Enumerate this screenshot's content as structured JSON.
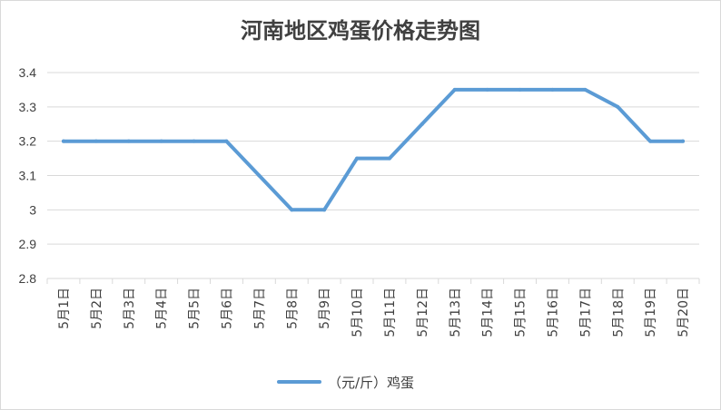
{
  "chart_data": {
    "type": "line",
    "title": "河南地区鸡蛋价格走势图",
    "categories": [
      "5月1日",
      "5月2日",
      "5月3日",
      "5月4日",
      "5月5日",
      "5月6日",
      "5月7日",
      "5月8日",
      "5月9日",
      "5月10日",
      "5月11日",
      "5月12日",
      "5月13日",
      "5月14日",
      "5月15日",
      "5月16日",
      "5月17日",
      "5月18日",
      "5月19日",
      "5月20日"
    ],
    "series": [
      {
        "name": "（元/斤）鸡蛋",
        "values": [
          3.2,
          3.2,
          3.2,
          3.2,
          3.2,
          3.2,
          3.1,
          3.0,
          3.0,
          3.15,
          3.15,
          3.25,
          3.35,
          3.35,
          3.35,
          3.35,
          3.35,
          3.3,
          3.2,
          3.2
        ],
        "color": "#5b9bd5"
      }
    ],
    "yticks": [
      "2.8",
      "2.9",
      "3",
      "3.1",
      "3.2",
      "3.3",
      "3.4"
    ],
    "ylim": [
      2.8,
      3.4
    ],
    "grid": true,
    "legend_position": "bottom",
    "xlabel": "",
    "ylabel": ""
  },
  "colors": {
    "grid": "#d9d9d9",
    "text": "#404040",
    "line": "#5b9bd5"
  }
}
